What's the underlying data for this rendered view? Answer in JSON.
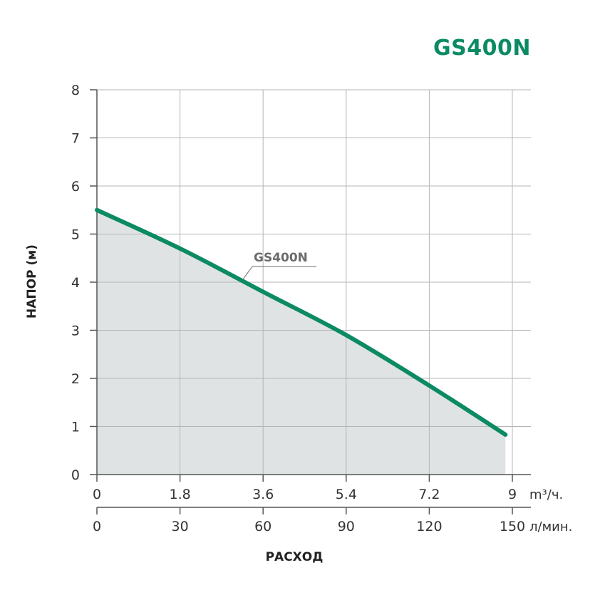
{
  "header": {
    "title": "GS400N"
  },
  "colors": {
    "brand": "#0b8a64",
    "fill": "#dfe3e4",
    "grid": "#b5b5b5",
    "axis": "#555555"
  },
  "chart_data": {
    "type": "area",
    "title": "GS400N",
    "ylabel": "НАПОР (м)",
    "xlabel": "РАСХОД",
    "ylim": [
      0,
      8
    ],
    "yticks": [
      "0",
      "1",
      "2",
      "3",
      "4",
      "5",
      "6",
      "7",
      "8"
    ],
    "x_axes": [
      {
        "unit": "m³/ч.",
        "ticks": [
          "0",
          "1.8",
          "3.6",
          "5.4",
          "7.2",
          "9"
        ],
        "range": [
          0,
          9
        ]
      },
      {
        "unit": "л/мин.",
        "ticks": [
          "0",
          "30",
          "60",
          "90",
          "120",
          "150"
        ],
        "range": [
          0,
          150
        ]
      }
    ],
    "series": [
      {
        "name": "GS400N",
        "x_m3h": [
          0,
          1.8,
          3.6,
          5.4,
          7.2,
          8.85
        ],
        "y": [
          5.5,
          4.7,
          3.8,
          2.9,
          1.85,
          0.83
        ]
      }
    ],
    "grid": true
  }
}
